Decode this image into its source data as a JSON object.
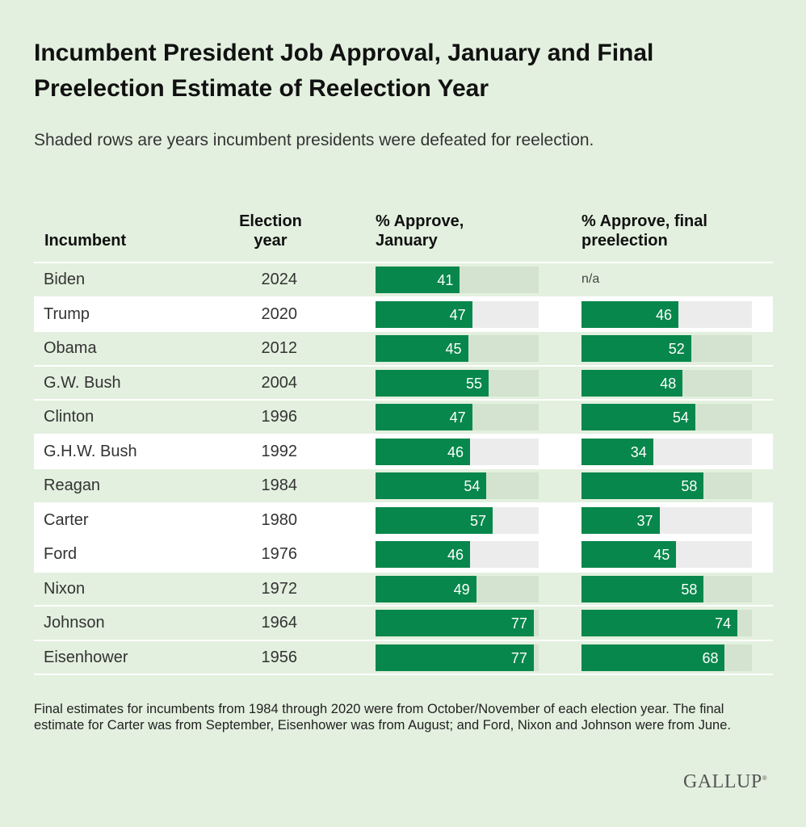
{
  "chart_data": {
    "type": "bar",
    "title": "Incumbent President Job Approval, January and Final Preelection Estimate of Reelection Year",
    "subtitle": "Shaded rows are years incumbent presidents were defeated for reelection.",
    "columns": [
      "Incumbent",
      "Election year",
      "% Approve, January",
      "% Approve, final preelection"
    ],
    "rows": [
      {
        "incumbent": "Biden",
        "year": "2024",
        "january": 41,
        "final": null,
        "final_label": "n/a",
        "defeated": false
      },
      {
        "incumbent": "Trump",
        "year": "2020",
        "january": 47,
        "final": 46,
        "defeated": true
      },
      {
        "incumbent": "Obama",
        "year": "2012",
        "january": 45,
        "final": 52,
        "defeated": false
      },
      {
        "incumbent": "G.W. Bush",
        "year": "2004",
        "january": 55,
        "final": 48,
        "defeated": false
      },
      {
        "incumbent": "Clinton",
        "year": "1996",
        "january": 47,
        "final": 54,
        "defeated": false
      },
      {
        "incumbent": "G.H.W. Bush",
        "year": "1992",
        "january": 46,
        "final": 34,
        "defeated": true
      },
      {
        "incumbent": "Reagan",
        "year": "1984",
        "january": 54,
        "final": 58,
        "defeated": false
      },
      {
        "incumbent": "Carter",
        "year": "1980",
        "january": 57,
        "final": 37,
        "defeated": true
      },
      {
        "incumbent": "Ford",
        "year": "1976",
        "january": 46,
        "final": 45,
        "defeated": true
      },
      {
        "incumbent": "Nixon",
        "year": "1972",
        "january": 49,
        "final": 58,
        "defeated": false
      },
      {
        "incumbent": "Johnson",
        "year": "1964",
        "january": 77,
        "final": 74,
        "defeated": false
      },
      {
        "incumbent": "Eisenhower",
        "year": "1956",
        "january": 77,
        "final": 68,
        "defeated": false
      }
    ],
    "colors": {
      "bar": "#07874b",
      "background": "#e3f0df",
      "defeated_row": "#ffffff"
    }
  },
  "headers": {
    "incumbent": "Incumbent",
    "year": "Election year",
    "january": "% Approve, January",
    "final": "% Approve, final preelection"
  },
  "note": "Final estimates for incumbents from 1984 through 2020 were from October/November of each election year. The final estimate for Carter was from September, Eisenhower was from August; and Ford, Nixon and Johnson were from June.",
  "logo": "GALLUP"
}
